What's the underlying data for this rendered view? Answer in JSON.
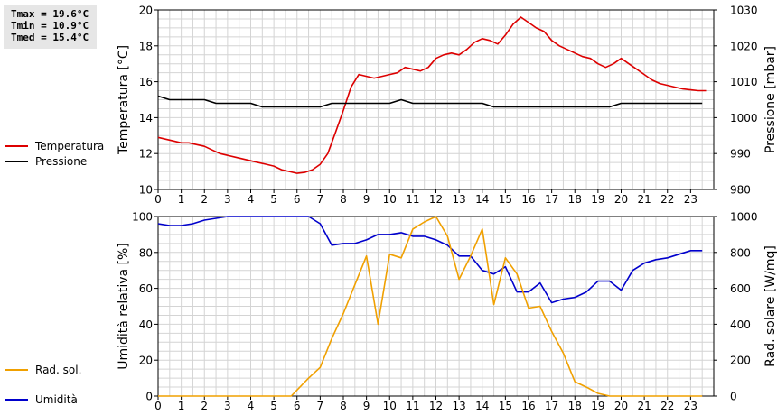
{
  "stats": [
    "Tmax = 19.6°C",
    "Tmin = 10.9°C",
    "Tmed = 15.4°C"
  ],
  "colors": {
    "temperature": "#dd0000",
    "pressure": "#000000",
    "humidity": "#0000cc",
    "radiation": "#f0a000",
    "grid": "#d4d4d4"
  },
  "chart_data": [
    {
      "type": "line",
      "x_ticks": [
        "0",
        "1",
        "2",
        "3",
        "4",
        "5",
        "6",
        "7",
        "8",
        "9",
        "10",
        "11",
        "12",
        "13",
        "14",
        "15",
        "16",
        "17",
        "18",
        "19",
        "20",
        "21",
        "22",
        "23"
      ],
      "xlim": [
        0,
        24
      ],
      "ylabel": "Temperatura [°C]",
      "ylim": [
        10,
        20
      ],
      "y_ticks": [
        "10",
        "12",
        "14",
        "16",
        "18",
        "20"
      ],
      "y2label": "Pressione [mbar]",
      "y2lim": [
        980,
        1030
      ],
      "y2_ticks": [
        "980",
        "990",
        "1000",
        "1010",
        "1020",
        "1030"
      ],
      "grid": true,
      "legend_position": "left",
      "series": [
        {
          "name": "Temperatura",
          "axis": "left",
          "x": [
            0,
            0.33,
            0.67,
            1,
            1.33,
            1.67,
            2,
            2.33,
            2.67,
            3,
            3.33,
            3.67,
            4,
            4.33,
            4.67,
            5,
            5.33,
            5.67,
            6,
            6.33,
            6.67,
            7,
            7.33,
            7.67,
            8,
            8.33,
            8.67,
            9,
            9.33,
            9.67,
            10,
            10.33,
            10.67,
            11,
            11.33,
            11.67,
            12,
            12.33,
            12.67,
            13,
            13.33,
            13.67,
            14,
            14.33,
            14.67,
            15,
            15.33,
            15.67,
            16,
            16.33,
            16.67,
            17,
            17.33,
            17.67,
            18,
            18.33,
            18.67,
            19,
            19.33,
            19.67,
            20,
            20.33,
            20.67,
            21,
            21.33,
            21.67,
            22,
            22.33,
            22.67,
            23,
            23.33,
            23.67
          ],
          "values": [
            12.9,
            12.8,
            12.7,
            12.6,
            12.6,
            12.5,
            12.4,
            12.2,
            12.0,
            11.9,
            11.8,
            11.7,
            11.6,
            11.5,
            11.4,
            11.3,
            11.1,
            11.0,
            10.9,
            10.95,
            11.1,
            11.4,
            12.0,
            13.2,
            14.4,
            15.7,
            16.4,
            16.3,
            16.2,
            16.3,
            16.4,
            16.5,
            16.8,
            16.7,
            16.6,
            16.8,
            17.3,
            17.5,
            17.6,
            17.5,
            17.8,
            18.2,
            18.4,
            18.3,
            18.1,
            18.6,
            19.2,
            19.6,
            19.3,
            19.0,
            18.8,
            18.3,
            18.0,
            17.8,
            17.6,
            17.4,
            17.3,
            17.0,
            16.8,
            17.0,
            17.3,
            17.0,
            16.7,
            16.4,
            16.1,
            15.9,
            15.8,
            15.7,
            15.6,
            15.55,
            15.5,
            15.5
          ]
        },
        {
          "name": "Pressione",
          "axis": "right",
          "x": [
            0,
            0.5,
            1,
            1.5,
            2,
            2.5,
            3,
            3.5,
            4,
            4.5,
            5,
            5.5,
            6,
            6.5,
            7,
            7.5,
            8,
            8.5,
            9,
            9.5,
            10,
            10.5,
            11,
            11.5,
            12,
            12.5,
            13,
            13.5,
            14,
            14.5,
            15,
            15.5,
            16,
            16.5,
            17,
            17.5,
            18,
            18.5,
            19,
            19.5,
            20,
            20.5,
            21,
            21.5,
            22,
            22.5,
            23,
            23.5
          ],
          "values": [
            1006,
            1005,
            1005,
            1005,
            1005,
            1004,
            1004,
            1004,
            1004,
            1003,
            1003,
            1003,
            1003,
            1003,
            1003,
            1004,
            1004,
            1004,
            1004,
            1004,
            1004,
            1005,
            1004,
            1004,
            1004,
            1004,
            1004,
            1004,
            1004,
            1003,
            1003,
            1003,
            1003,
            1003,
            1003,
            1003,
            1003,
            1003,
            1003,
            1003,
            1004,
            1004,
            1004,
            1004,
            1004,
            1004,
            1004,
            1004
          ]
        }
      ]
    },
    {
      "type": "line",
      "x_ticks": [
        "0",
        "1",
        "2",
        "3",
        "4",
        "5",
        "6",
        "7",
        "8",
        "9",
        "10",
        "11",
        "12",
        "13",
        "14",
        "15",
        "16",
        "17",
        "18",
        "19",
        "20",
        "21",
        "22",
        "23"
      ],
      "xlim": [
        0,
        24
      ],
      "ylabel": "Umidità relativa [%]",
      "ylim": [
        0,
        100
      ],
      "y_ticks": [
        "0",
        "20",
        "40",
        "60",
        "80",
        "100"
      ],
      "y2label": "Rad. solare [W/mq]",
      "y2lim": [
        0,
        1000
      ],
      "y2_ticks": [
        "0",
        "200",
        "400",
        "600",
        "800",
        "1000"
      ],
      "grid": true,
      "legend_position": "left",
      "series": [
        {
          "name": "Umidità",
          "axis": "left",
          "x": [
            0,
            0.5,
            1,
            1.5,
            2,
            2.5,
            3,
            3.5,
            4,
            4.5,
            5,
            5.5,
            6,
            6.5,
            7,
            7.5,
            8,
            8.5,
            9,
            9.5,
            10,
            10.5,
            11,
            11.5,
            12,
            12.5,
            13,
            13.5,
            14,
            14.5,
            15,
            15.5,
            16,
            16.5,
            17,
            17.5,
            18,
            18.5,
            19,
            19.5,
            20,
            20.5,
            21,
            21.5,
            22,
            22.5,
            23,
            23.5
          ],
          "values": [
            96,
            95,
            95,
            96,
            98,
            99,
            100,
            100,
            100,
            100,
            100,
            100,
            100,
            100,
            96,
            84,
            85,
            85,
            87,
            90,
            90,
            91,
            89,
            89,
            87,
            84,
            78,
            78,
            70,
            68,
            72,
            58,
            58,
            63,
            52,
            54,
            55,
            58,
            64,
            64,
            59,
            70,
            74,
            76,
            77,
            79,
            81,
            81
          ]
        },
        {
          "name": "Rad. sol.",
          "axis": "right",
          "x": [
            0,
            1,
            2,
            3,
            4,
            5,
            5.75,
            6.5,
            7,
            7.5,
            8,
            8.5,
            9,
            9.5,
            10,
            10.5,
            11,
            11.5,
            12,
            12.5,
            13,
            13.5,
            14,
            14.5,
            15,
            15.5,
            16,
            16.5,
            17,
            17.5,
            18,
            18.5,
            19,
            19.5,
            20,
            21,
            22,
            23,
            23.5
          ],
          "values": [
            0,
            0,
            0,
            0,
            0,
            0,
            0,
            100,
            160,
            320,
            460,
            620,
            780,
            400,
            790,
            770,
            930,
            970,
            1000,
            890,
            650,
            780,
            930,
            510,
            770,
            680,
            490,
            500,
            360,
            240,
            80,
            50,
            15,
            0,
            0,
            0,
            0,
            0,
            0
          ]
        }
      ]
    }
  ]
}
